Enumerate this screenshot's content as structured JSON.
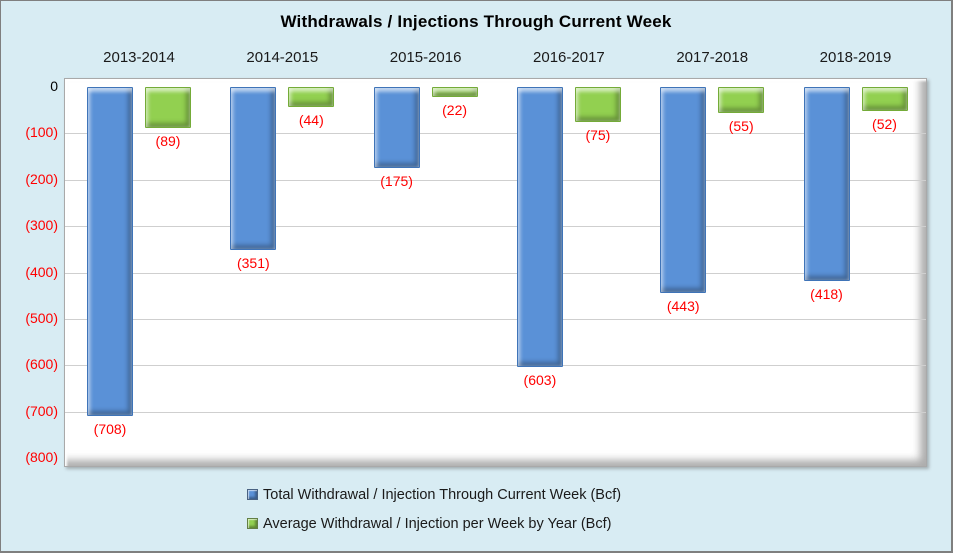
{
  "chart_data": {
    "type": "bar",
    "title": "Withdrawals / Injections Through Current Week",
    "categories": [
      "2013-2014",
      "2014-2015",
      "2015-2016",
      "2016-2017",
      "2017-2018",
      "2018-2019"
    ],
    "series": [
      {
        "name": "Total Withdrawal / Injection Through Current Week (Bcf)",
        "key": "total",
        "color": "#5a91d7",
        "border_color": "#3f74b8",
        "values": [
          -708,
          -351,
          -175,
          -603,
          -443,
          -418
        ],
        "point_labels": [
          "(708)",
          "(351)",
          "(175)",
          "(603)",
          "(443)",
          "(418)"
        ]
      },
      {
        "name": "Average Withdrawal / Injection per Week by Year (Bcf)",
        "key": "average",
        "color": "#92d050",
        "border_color": "#74ab38",
        "values": [
          -89,
          -44,
          -22,
          -75,
          -55,
          -52
        ],
        "point_labels": [
          "(89)",
          "(44)",
          "(22)",
          "(75)",
          "(55)",
          "(52)"
        ]
      }
    ],
    "ylim": [
      -800,
      0
    ],
    "ytick_labels": [
      "0",
      "(100)",
      "(200)",
      "(300)",
      "(400)",
      "(500)",
      "(600)",
      "(700)",
      "(800)"
    ],
    "grid": true,
    "legend_position": "bottom",
    "colors": {
      "background": "#d8ecf3",
      "plot_background": "#ffffff",
      "gridline": "#cfcfcf",
      "value_label": "#ff0000",
      "negative_tick_label": "#ff0000",
      "zero_tick_label": "#000000",
      "title": "#000000"
    }
  }
}
